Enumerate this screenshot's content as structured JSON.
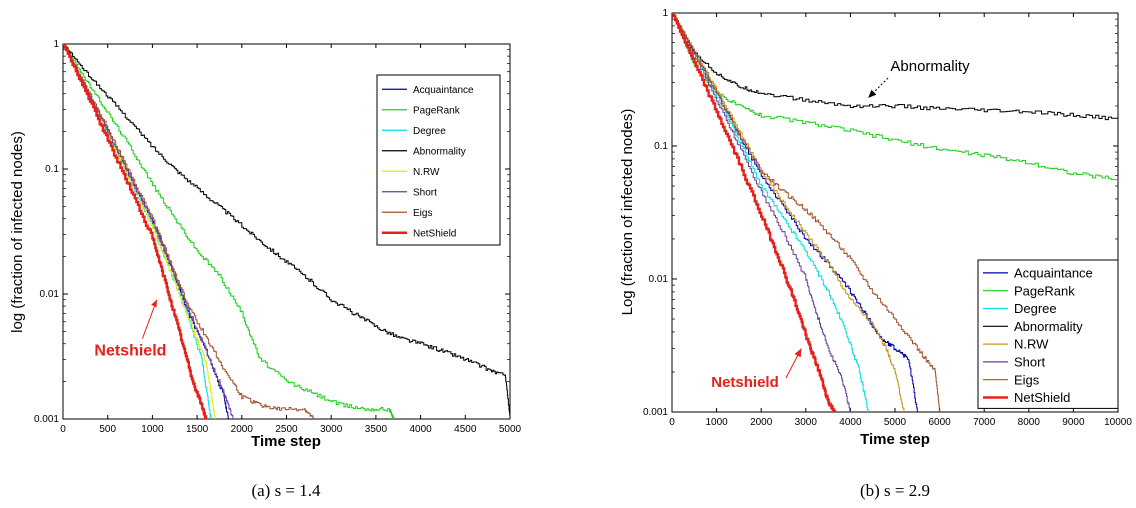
{
  "chart_data": [
    {
      "type": "line",
      "caption": "(a) s = 1.4",
      "xlabel": "Time step",
      "ylabel": "log (fraction of infected nodes)",
      "xlim": [
        0,
        5000
      ],
      "ylim": [
        0.001,
        1
      ],
      "yscale": "log",
      "xticks": [
        0,
        500,
        1000,
        1500,
        2000,
        2500,
        3000,
        3500,
        4000,
        4500,
        5000
      ],
      "yticks": [
        0.001,
        0.01,
        0.1,
        1
      ],
      "ytick_labels": [
        "0.001",
        "0.01",
        "0.1",
        "1"
      ],
      "legend_position": "upper-right",
      "annotation": {
        "text": "Netshield",
        "color": "#e8201a",
        "x": 1000,
        "y": 0.004,
        "arrow_to": [
          1050,
          0.009
        ]
      },
      "series": [
        {
          "name": "Acquaintance",
          "color": "#0000aa",
          "x": [
            0,
            250,
            500,
            750,
            1000,
            1200,
            1400,
            1600,
            1800,
            1850
          ],
          "y": [
            1,
            0.45,
            0.2,
            0.085,
            0.038,
            0.017,
            0.007,
            0.0035,
            0.0015,
            0.001
          ]
        },
        {
          "name": "PageRank",
          "color": "#18d018",
          "x": [
            0,
            250,
            500,
            750,
            1000,
            1250,
            1500,
            1750,
            2000,
            2200,
            2500,
            2800,
            3100,
            3400,
            3650,
            3700
          ],
          "y": [
            1,
            0.52,
            0.28,
            0.15,
            0.075,
            0.04,
            0.022,
            0.014,
            0.007,
            0.003,
            0.002,
            0.0016,
            0.0013,
            0.0012,
            0.0012,
            0.001
          ]
        },
        {
          "name": "Degree",
          "color": "#00e0e0",
          "x": [
            0,
            250,
            500,
            750,
            1000,
            1200,
            1400,
            1550,
            1650
          ],
          "y": [
            1,
            0.44,
            0.19,
            0.08,
            0.035,
            0.015,
            0.0065,
            0.003,
            0.001
          ]
        },
        {
          "name": "Abnormality",
          "color": "#000000",
          "x": [
            0,
            250,
            500,
            750,
            1000,
            1250,
            1500,
            1750,
            2000,
            2250,
            2500,
            2750,
            3000,
            3250,
            3500,
            3750,
            4000,
            4250,
            4500,
            4750,
            4950,
            5000
          ],
          "y": [
            1,
            0.6,
            0.38,
            0.24,
            0.15,
            0.1,
            0.07,
            0.05,
            0.035,
            0.025,
            0.018,
            0.013,
            0.009,
            0.007,
            0.0055,
            0.0045,
            0.004,
            0.0035,
            0.003,
            0.0025,
            0.0022,
            0.001
          ]
        },
        {
          "name": "N.RW",
          "color": "#e8e800",
          "x": [
            0,
            250,
            500,
            750,
            1000,
            1200,
            1400,
            1600,
            1700
          ],
          "y": [
            1,
            0.44,
            0.19,
            0.08,
            0.034,
            0.015,
            0.0065,
            0.0028,
            0.001
          ]
        },
        {
          "name": "Short",
          "color": "#6a3d9a",
          "x": [
            0,
            250,
            500,
            750,
            1000,
            1200,
            1400,
            1600,
            1800,
            1900
          ],
          "y": [
            1,
            0.45,
            0.2,
            0.085,
            0.038,
            0.017,
            0.0075,
            0.0035,
            0.0016,
            0.001
          ]
        },
        {
          "name": "Eigs",
          "color": "#a0522d",
          "x": [
            0,
            250,
            500,
            750,
            1000,
            1200,
            1400,
            1600,
            1800,
            2000,
            2200,
            2400,
            2700,
            2800
          ],
          "y": [
            1,
            0.46,
            0.21,
            0.09,
            0.04,
            0.018,
            0.008,
            0.0045,
            0.0025,
            0.0015,
            0.0013,
            0.0012,
            0.0012,
            0.001
          ]
        },
        {
          "name": "NetShield",
          "color": "#e8201a",
          "x": [
            0,
            250,
            500,
            750,
            1000,
            1150,
            1300,
            1450,
            1550,
            1600
          ],
          "y": [
            1,
            0.42,
            0.17,
            0.07,
            0.028,
            0.012,
            0.005,
            0.002,
            0.0013,
            0.001
          ]
        }
      ]
    },
    {
      "type": "line",
      "caption": "(b) s = 2.9",
      "xlabel": "Time step",
      "ylabel": "Log (fraction of infected nodes)",
      "xlim": [
        0,
        10000
      ],
      "ylim": [
        0.001,
        1
      ],
      "yscale": "log",
      "xticks": [
        0,
        1000,
        2000,
        3000,
        4000,
        5000,
        6000,
        7000,
        8000,
        9000,
        10000
      ],
      "yticks": [
        0.001,
        0.01,
        0.1,
        1
      ],
      "ytick_labels": [
        "0.001",
        "0.01",
        "0.1",
        "1"
      ],
      "legend_position": "lower-right",
      "annotations": [
        {
          "text": "Abnormality",
          "color": "#000000",
          "x": 4500,
          "y": 0.4,
          "arrow_to": [
            4400,
            0.23
          ]
        },
        {
          "text": "Netshield",
          "color": "#e8201a",
          "x": 800,
          "y": 0.0022,
          "arrow_to": [
            2900,
            0.003
          ]
        }
      ],
      "series": [
        {
          "name": "Acquaintance",
          "color": "#0000aa",
          "x": [
            0,
            500,
            1000,
            1500,
            2000,
            2500,
            3000,
            3500,
            4000,
            4400,
            4700,
            5000,
            5300,
            5500
          ],
          "y": [
            1,
            0.5,
            0.25,
            0.12,
            0.06,
            0.035,
            0.02,
            0.013,
            0.008,
            0.005,
            0.0035,
            0.003,
            0.0025,
            0.001
          ]
        },
        {
          "name": "PageRank",
          "color": "#18d018",
          "x": [
            0,
            500,
            1000,
            1500,
            2000,
            3000,
            4000,
            5000,
            6000,
            7000,
            8000,
            9000,
            10000
          ],
          "y": [
            1,
            0.4,
            0.25,
            0.2,
            0.17,
            0.15,
            0.13,
            0.11,
            0.095,
            0.085,
            0.075,
            0.062,
            0.056
          ]
        },
        {
          "name": "Degree",
          "color": "#00e0e0",
          "x": [
            0,
            500,
            1000,
            1500,
            2000,
            2500,
            3000,
            3500,
            3900,
            4200,
            4400
          ],
          "y": [
            1,
            0.5,
            0.24,
            0.11,
            0.05,
            0.028,
            0.016,
            0.008,
            0.004,
            0.002,
            0.001
          ]
        },
        {
          "name": "Abnormality",
          "color": "#000000",
          "x": [
            0,
            500,
            1000,
            1500,
            2000,
            3000,
            4000,
            5000,
            6000,
            7000,
            8000,
            9000,
            10000
          ],
          "y": [
            1,
            0.5,
            0.35,
            0.28,
            0.25,
            0.22,
            0.2,
            0.2,
            0.19,
            0.185,
            0.18,
            0.17,
            0.16
          ]
        },
        {
          "name": "N.RW",
          "color": "#c8961e",
          "x": [
            0,
            500,
            1000,
            1500,
            2000,
            2500,
            3000,
            3500,
            4000,
            4500,
            4800,
            5000,
            5200
          ],
          "y": [
            1,
            0.52,
            0.26,
            0.13,
            0.065,
            0.037,
            0.022,
            0.013,
            0.007,
            0.0045,
            0.003,
            0.002,
            0.001
          ]
        },
        {
          "name": "Short",
          "color": "#6a3d9a",
          "x": [
            0,
            500,
            1000,
            1500,
            2000,
            2500,
            3000,
            3200,
            3500,
            3800,
            4000
          ],
          "y": [
            1,
            0.48,
            0.22,
            0.1,
            0.045,
            0.022,
            0.01,
            0.006,
            0.003,
            0.0018,
            0.001
          ]
        },
        {
          "name": "Eigs",
          "color": "#a0522d",
          "x": [
            0,
            500,
            1000,
            1500,
            2000,
            2500,
            3000,
            3500,
            4000,
            4500,
            5000,
            5500,
            5900,
            6000
          ],
          "y": [
            1,
            0.5,
            0.25,
            0.12,
            0.065,
            0.045,
            0.033,
            0.022,
            0.014,
            0.008,
            0.005,
            0.003,
            0.002,
            0.001
          ]
        },
        {
          "name": "NetShield",
          "color": "#e8201a",
          "x": [
            0,
            500,
            1000,
            1500,
            2000,
            2400,
            2800,
            3100,
            3300,
            3500,
            3650
          ],
          "y": [
            1,
            0.42,
            0.18,
            0.075,
            0.03,
            0.014,
            0.006,
            0.003,
            0.002,
            0.0012,
            0.001
          ]
        }
      ]
    }
  ]
}
